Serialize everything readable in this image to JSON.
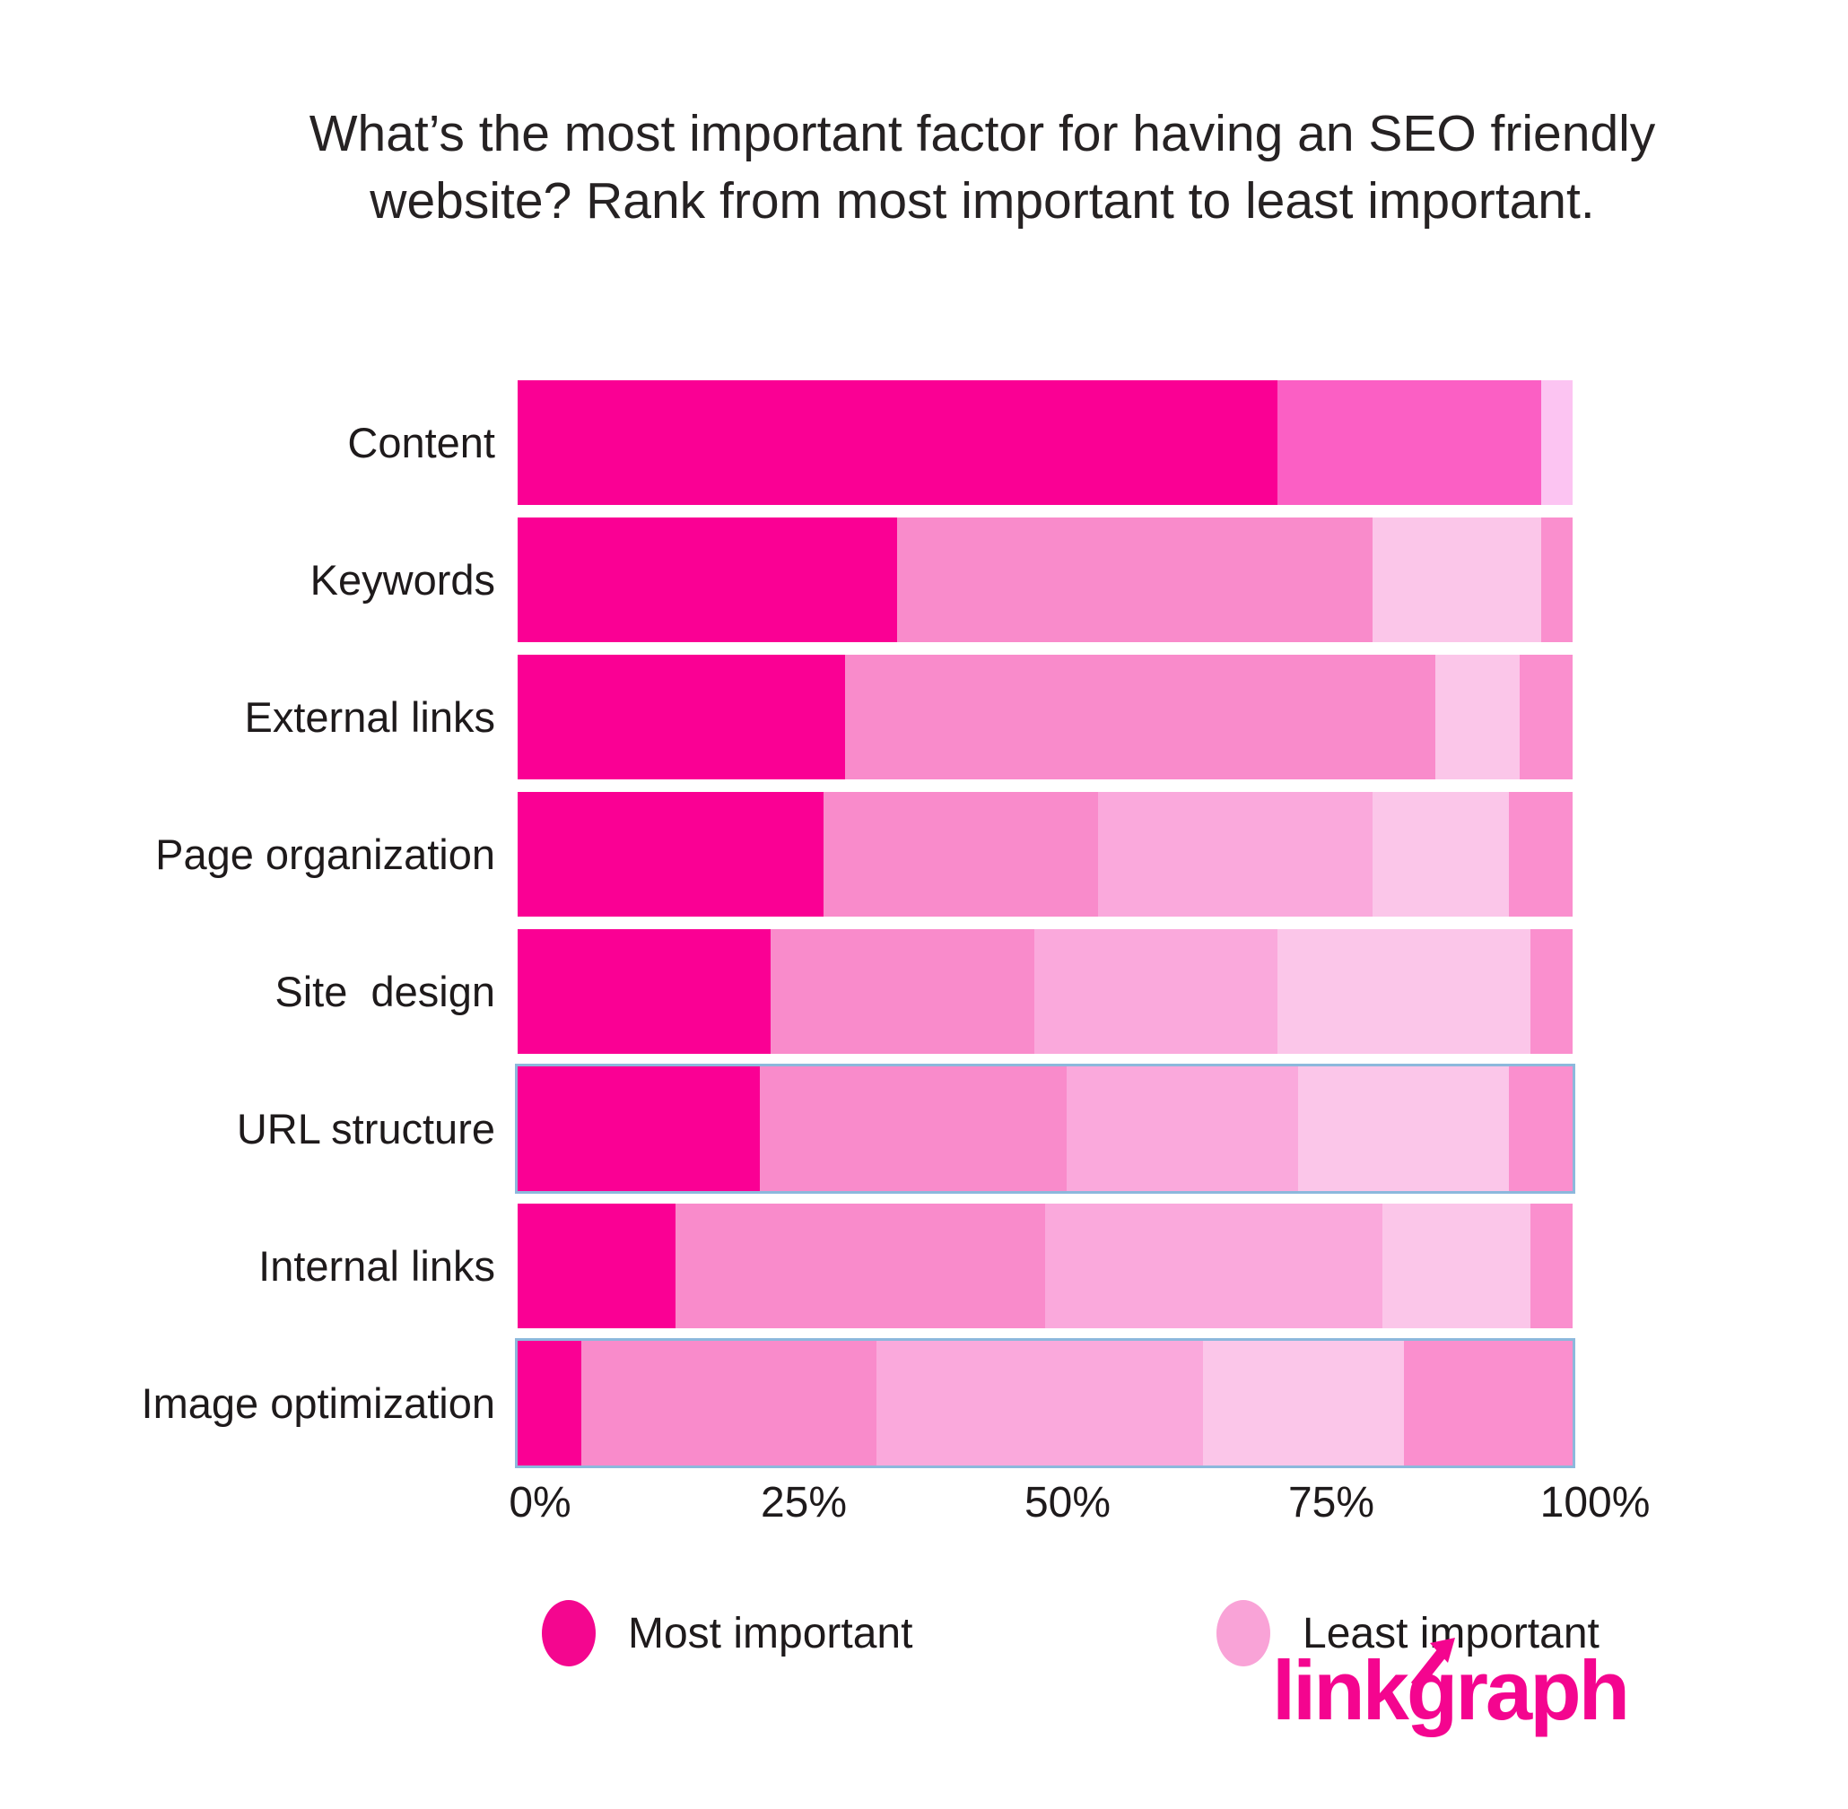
{
  "title": "What’s the most important factor for having an SEO friendly website? Rank from most important to least important.",
  "chart_data": {
    "type": "bar",
    "variant": "horizontal-stacked-percent",
    "title": "What’s the most important factor for having an SEO friendly website? Rank from most important to least important.",
    "categories": [
      "Content",
      "Keywords",
      "External links",
      "Page organization",
      "Site  design",
      "URL structure",
      "Internal links",
      "Image optimization"
    ],
    "x_ticks": [
      "0%",
      "25%",
      "50%",
      "75%",
      "100%"
    ],
    "x_range": [
      0,
      100
    ],
    "grid": false,
    "legend_position": "bottom",
    "legend": [
      {
        "label": "Most important",
        "color": "#f4068f"
      },
      {
        "label": "Least important",
        "color": "#f9a3d7"
      }
    ],
    "rows": [
      {
        "label": "Content",
        "highlighted": false,
        "segments": [
          {
            "rank": 1,
            "value": 72,
            "color": "#fa0094"
          },
          {
            "rank": 2,
            "value": 25,
            "color": "#fb5fc4"
          },
          {
            "rank": 3,
            "value": 3,
            "color": "#fcc4f2"
          }
        ]
      },
      {
        "label": "Keywords",
        "highlighted": false,
        "segments": [
          {
            "rank": 1,
            "value": 36,
            "color": "#fa0094"
          },
          {
            "rank": 2,
            "value": 45,
            "color": "#f98bcb"
          },
          {
            "rank": 3,
            "value": 16,
            "color": "#fbc6e9"
          },
          {
            "rank": 4,
            "value": 3,
            "color": "#fa8fce"
          }
        ]
      },
      {
        "label": "External links",
        "highlighted": false,
        "segments": [
          {
            "rank": 1,
            "value": 31,
            "color": "#fa0094"
          },
          {
            "rank": 2,
            "value": 56,
            "color": "#f98bcb"
          },
          {
            "rank": 3,
            "value": 8,
            "color": "#fbc6e9"
          },
          {
            "rank": 4,
            "value": 5,
            "color": "#fa8fce"
          }
        ]
      },
      {
        "label": "Page organization",
        "highlighted": false,
        "segments": [
          {
            "rank": 1,
            "value": 29,
            "color": "#fa0094"
          },
          {
            "rank": 2,
            "value": 26,
            "color": "#f98bcb"
          },
          {
            "rank": 3,
            "value": 26,
            "color": "#faa9dc"
          },
          {
            "rank": 4,
            "value": 13,
            "color": "#fbc6e9"
          },
          {
            "rank": 5,
            "value": 6,
            "color": "#fa8fce"
          }
        ]
      },
      {
        "label": "Site  design",
        "highlighted": false,
        "segments": [
          {
            "rank": 1,
            "value": 24,
            "color": "#fa0094"
          },
          {
            "rank": 2,
            "value": 25,
            "color": "#f98bcb"
          },
          {
            "rank": 3,
            "value": 23,
            "color": "#faa9dc"
          },
          {
            "rank": 4,
            "value": 24,
            "color": "#fbc6e9"
          },
          {
            "rank": 5,
            "value": 4,
            "color": "#fa8fce"
          }
        ]
      },
      {
        "label": "URL structure",
        "highlighted": true,
        "segments": [
          {
            "rank": 1,
            "value": 23,
            "color": "#fa0094"
          },
          {
            "rank": 2,
            "value": 29,
            "color": "#f98bcb"
          },
          {
            "rank": 3,
            "value": 22,
            "color": "#faa9dc"
          },
          {
            "rank": 4,
            "value": 20,
            "color": "#fbc6e9"
          },
          {
            "rank": 5,
            "value": 6,
            "color": "#fa8fce"
          }
        ]
      },
      {
        "label": "Internal links",
        "highlighted": false,
        "segments": [
          {
            "rank": 1,
            "value": 15,
            "color": "#fa0094"
          },
          {
            "rank": 2,
            "value": 35,
            "color": "#f98bcb"
          },
          {
            "rank": 3,
            "value": 32,
            "color": "#faa9dc"
          },
          {
            "rank": 4,
            "value": 14,
            "color": "#fbc6e9"
          },
          {
            "rank": 5,
            "value": 4,
            "color": "#fa8fce"
          }
        ]
      },
      {
        "label": "Image optimization",
        "highlighted": true,
        "segments": [
          {
            "rank": 1,
            "value": 6,
            "color": "#fa0094"
          },
          {
            "rank": 2,
            "value": 28,
            "color": "#f98bcb"
          },
          {
            "rank": 3,
            "value": 31,
            "color": "#faa9dc"
          },
          {
            "rank": 4,
            "value": 19,
            "color": "#fbc6e9"
          },
          {
            "rank": 5,
            "value": 16,
            "color": "#fa8fce"
          }
        ]
      }
    ],
    "highlight_border_color": "#8cb8dc"
  },
  "logo": {
    "text": "linkgraph",
    "color": "#f4058f"
  }
}
